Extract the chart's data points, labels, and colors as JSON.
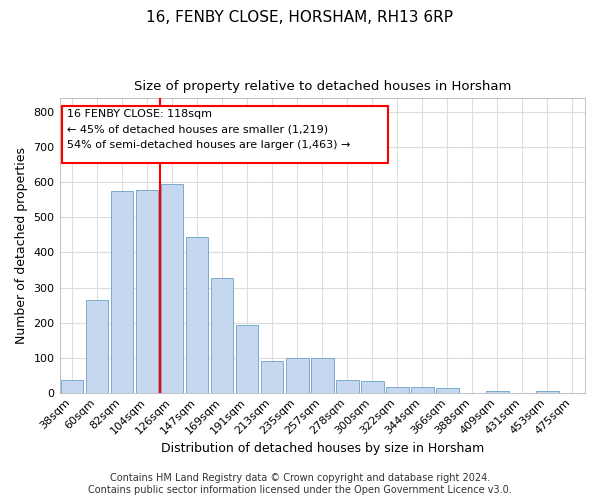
{
  "title": "16, FENBY CLOSE, HORSHAM, RH13 6RP",
  "subtitle": "Size of property relative to detached houses in Horsham",
  "xlabel": "Distribution of detached houses by size in Horsham",
  "ylabel": "Number of detached properties",
  "categories": [
    "38sqm",
    "60sqm",
    "82sqm",
    "104sqm",
    "126sqm",
    "147sqm",
    "169sqm",
    "191sqm",
    "213sqm",
    "235sqm",
    "257sqm",
    "278sqm",
    "300sqm",
    "322sqm",
    "344sqm",
    "366sqm",
    "388sqm",
    "409sqm",
    "431sqm",
    "453sqm",
    "475sqm"
  ],
  "values": [
    37,
    263,
    575,
    578,
    596,
    445,
    328,
    193,
    90,
    100,
    100,
    37,
    32,
    17,
    17,
    12,
    0,
    6,
    0,
    6,
    0
  ],
  "bar_color": "#c5d8f0",
  "bar_edge_color": "#7aaacc",
  "vline_color": "red",
  "vline_x_index": 4,
  "annotation_box_text": "16 FENBY CLOSE: 118sqm\n← 45% of detached houses are smaller (1,219)\n54% of semi-detached houses are larger (1,463) →",
  "ylim": [
    0,
    840
  ],
  "yticks": [
    0,
    100,
    200,
    300,
    400,
    500,
    600,
    700,
    800
  ],
  "background_color": "#ffffff",
  "plot_bg_color": "#ffffff",
  "grid_color": "#dddddd",
  "footer": "Contains HM Land Registry data © Crown copyright and database right 2024.\nContains public sector information licensed under the Open Government Licence v3.0.",
  "title_fontsize": 11,
  "subtitle_fontsize": 9.5,
  "xlabel_fontsize": 9,
  "ylabel_fontsize": 9,
  "tick_fontsize": 8,
  "footer_fontsize": 7
}
